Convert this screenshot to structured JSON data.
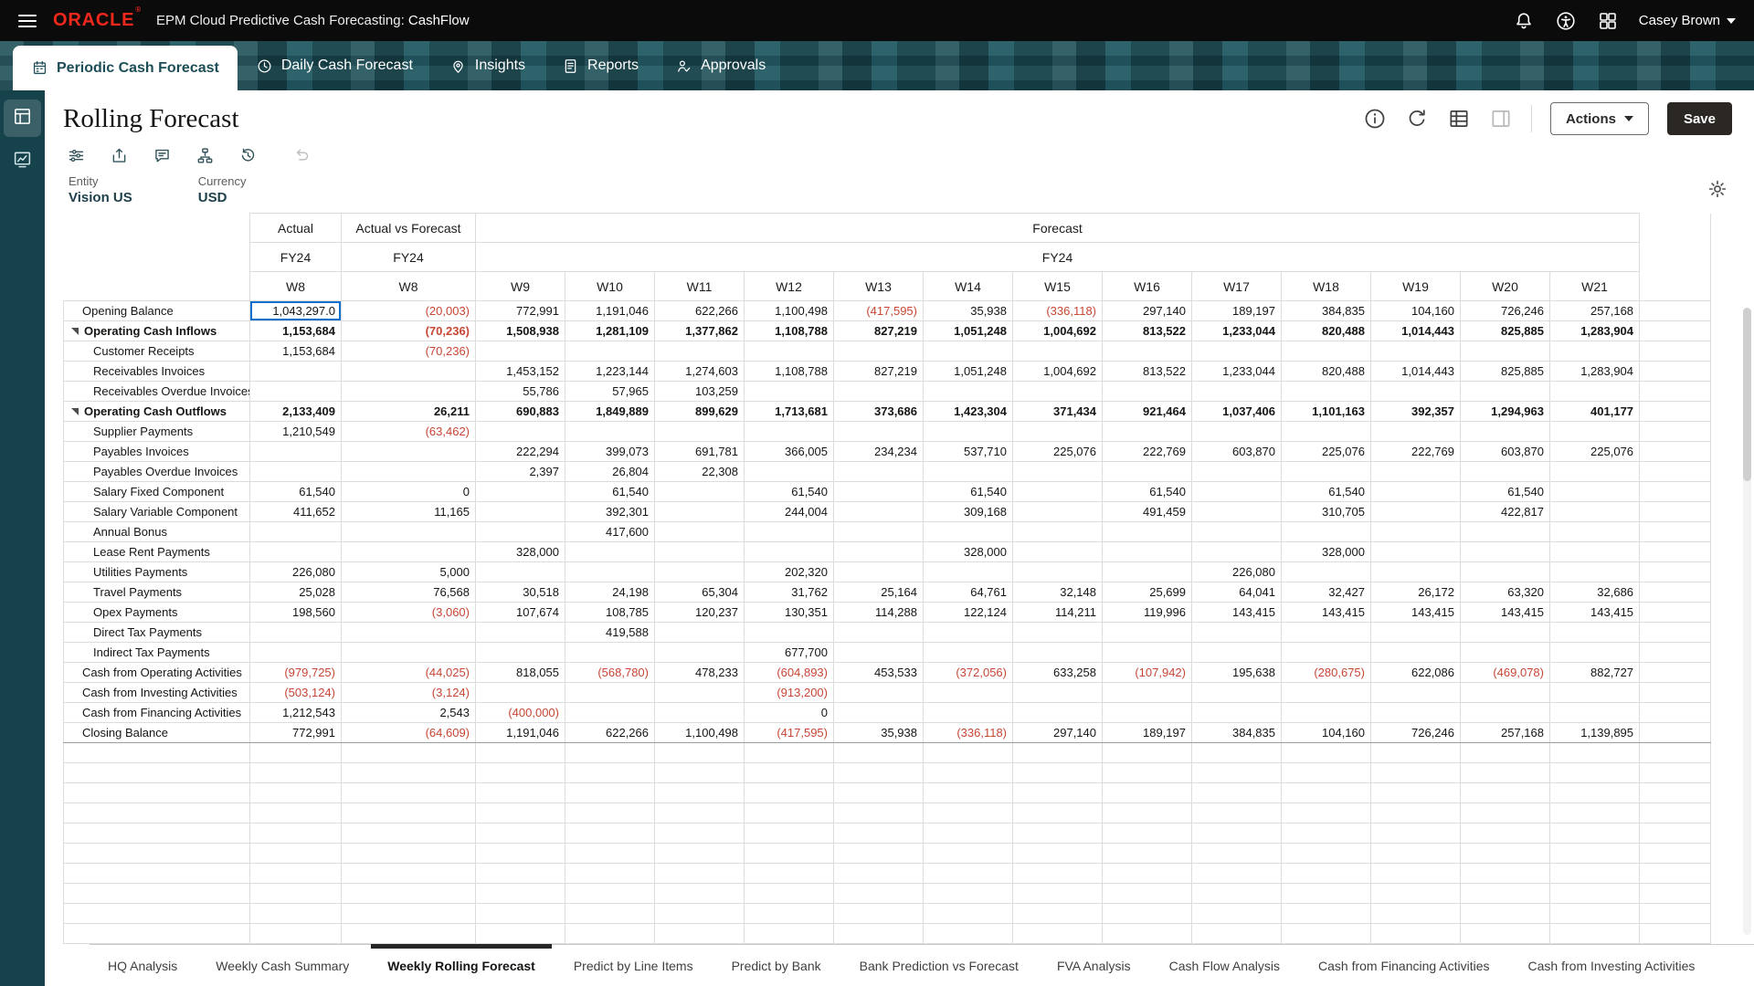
{
  "colors": {
    "oracle_red": "#f0281c",
    "band_teal": "#1d4e57",
    "sidebar_teal": "#16424c",
    "negative_red": "#c74634",
    "selected_cell_border": "#0b6fd0",
    "save_button_bg": "#2b2723"
  },
  "topbar": {
    "logo": "ORACLE",
    "logo_mark": "®",
    "title": "EPM Cloud Predictive Cash Forecasting:",
    "context": "CashFlow",
    "user": "Casey Brown"
  },
  "nav_tabs": [
    {
      "label": "Periodic Cash Forecast",
      "icon": "calendar",
      "active": true
    },
    {
      "label": "Daily Cash Forecast",
      "icon": "clock",
      "active": false
    },
    {
      "label": "Insights",
      "icon": "pin",
      "active": false
    },
    {
      "label": "Reports",
      "icon": "doc",
      "active": false
    },
    {
      "label": "Approvals",
      "icon": "approvals",
      "active": false
    }
  ],
  "page": {
    "title": "Rolling Forecast",
    "actions_label": "Actions",
    "save_label": "Save"
  },
  "pov": {
    "entity_label": "Entity",
    "entity_value": "Vision US",
    "currency_label": "Currency",
    "currency_value": "USD"
  },
  "grid": {
    "column_groups": [
      {
        "label": "Actual",
        "year": "FY24",
        "weeks": [
          "W8"
        ]
      },
      {
        "label": "Actual vs Forecast",
        "year": "FY24",
        "weeks": [
          "W8"
        ]
      },
      {
        "label": "Forecast",
        "year": "FY24",
        "weeks": [
          "W9",
          "W10",
          "W11",
          "W12",
          "W13",
          "W14",
          "W15",
          "W16",
          "W17",
          "W18",
          "W19",
          "W20",
          "W21"
        ]
      }
    ],
    "selected_cell": {
      "row": 0,
      "col": 0
    },
    "rows": [
      {
        "label": "Opening Balance",
        "indent": 1,
        "bold": false,
        "expandable": false,
        "values": [
          "1,043,297.0",
          "(20,003)",
          "772,991",
          "1,191,046",
          "622,266",
          "1,100,498",
          "(417,595)",
          "35,938",
          "(336,118)",
          "297,140",
          "189,197",
          "384,835",
          "104,160",
          "726,246",
          "257,168"
        ]
      },
      {
        "label": "Operating Cash Inflows",
        "indent": 0,
        "bold": true,
        "expandable": true,
        "values": [
          "1,153,684",
          "(70,236)",
          "1,508,938",
          "1,281,109",
          "1,377,862",
          "1,108,788",
          "827,219",
          "1,051,248",
          "1,004,692",
          "813,522",
          "1,233,044",
          "820,488",
          "1,014,443",
          "825,885",
          "1,283,904"
        ]
      },
      {
        "label": "Customer Receipts",
        "indent": 2,
        "bold": false,
        "expandable": false,
        "values": [
          "1,153,684",
          "(70,236)",
          "",
          "",
          "",
          "",
          "",
          "",
          "",
          "",
          "",
          "",
          "",
          "",
          ""
        ]
      },
      {
        "label": "Receivables Invoices",
        "indent": 2,
        "bold": false,
        "expandable": false,
        "values": [
          "",
          "",
          "1,453,152",
          "1,223,144",
          "1,274,603",
          "1,108,788",
          "827,219",
          "1,051,248",
          "1,004,692",
          "813,522",
          "1,233,044",
          "820,488",
          "1,014,443",
          "825,885",
          "1,283,904"
        ]
      },
      {
        "label": "Receivables Overdue Invoices",
        "indent": 2,
        "bold": false,
        "expandable": false,
        "values": [
          "",
          "",
          "55,786",
          "57,965",
          "103,259",
          "",
          "",
          "",
          "",
          "",
          "",
          "",
          "",
          "",
          ""
        ]
      },
      {
        "label": "Operating Cash Outflows",
        "indent": 0,
        "bold": true,
        "expandable": true,
        "values": [
          "2,133,409",
          "26,211",
          "690,883",
          "1,849,889",
          "899,629",
          "1,713,681",
          "373,686",
          "1,423,304",
          "371,434",
          "921,464",
          "1,037,406",
          "1,101,163",
          "392,357",
          "1,294,963",
          "401,177"
        ]
      },
      {
        "label": "Supplier Payments",
        "indent": 2,
        "bold": false,
        "expandable": false,
        "values": [
          "1,210,549",
          "(63,462)",
          "",
          "",
          "",
          "",
          "",
          "",
          "",
          "",
          "",
          "",
          "",
          "",
          ""
        ]
      },
      {
        "label": "Payables Invoices",
        "indent": 2,
        "bold": false,
        "expandable": false,
        "values": [
          "",
          "",
          "222,294",
          "399,073",
          "691,781",
          "366,005",
          "234,234",
          "537,710",
          "225,076",
          "222,769",
          "603,870",
          "225,076",
          "222,769",
          "603,870",
          "225,076"
        ]
      },
      {
        "label": "Payables Overdue Invoices",
        "indent": 2,
        "bold": false,
        "expandable": false,
        "values": [
          "",
          "",
          "2,397",
          "26,804",
          "22,308",
          "",
          "",
          "",
          "",
          "",
          "",
          "",
          "",
          "",
          ""
        ]
      },
      {
        "label": "Salary Fixed Component",
        "indent": 2,
        "bold": false,
        "expandable": false,
        "values": [
          "61,540",
          "0",
          "",
          "61,540",
          "",
          "61,540",
          "",
          "61,540",
          "",
          "61,540",
          "",
          "61,540",
          "",
          "61,540",
          ""
        ]
      },
      {
        "label": "Salary Variable Component",
        "indent": 2,
        "bold": false,
        "expandable": false,
        "values": [
          "411,652",
          "11,165",
          "",
          "392,301",
          "",
          "244,004",
          "",
          "309,168",
          "",
          "491,459",
          "",
          "310,705",
          "",
          "422,817",
          ""
        ]
      },
      {
        "label": "Annual Bonus",
        "indent": 2,
        "bold": false,
        "expandable": false,
        "values": [
          "",
          "",
          "",
          "417,600",
          "",
          "",
          "",
          "",
          "",
          "",
          "",
          "",
          "",
          "",
          ""
        ]
      },
      {
        "label": "Lease Rent Payments",
        "indent": 2,
        "bold": false,
        "expandable": false,
        "values": [
          "",
          "",
          "328,000",
          "",
          "",
          "",
          "",
          "328,000",
          "",
          "",
          "",
          "328,000",
          "",
          "",
          ""
        ]
      },
      {
        "label": "Utilities Payments",
        "indent": 2,
        "bold": false,
        "expandable": false,
        "values": [
          "226,080",
          "5,000",
          "",
          "",
          "",
          "202,320",
          "",
          "",
          "",
          "",
          "226,080",
          "",
          "",
          "",
          ""
        ]
      },
      {
        "label": "Travel Payments",
        "indent": 2,
        "bold": false,
        "expandable": false,
        "values": [
          "25,028",
          "76,568",
          "30,518",
          "24,198",
          "65,304",
          "31,762",
          "25,164",
          "64,761",
          "32,148",
          "25,699",
          "64,041",
          "32,427",
          "26,172",
          "63,320",
          "32,686"
        ]
      },
      {
        "label": "Opex Payments",
        "indent": 2,
        "bold": false,
        "expandable": false,
        "values": [
          "198,560",
          "(3,060)",
          "107,674",
          "108,785",
          "120,237",
          "130,351",
          "114,288",
          "122,124",
          "114,211",
          "119,996",
          "143,415",
          "143,415",
          "143,415",
          "143,415",
          "143,415"
        ]
      },
      {
        "label": "Direct Tax Payments",
        "indent": 2,
        "bold": false,
        "expandable": false,
        "values": [
          "",
          "",
          "",
          "419,588",
          "",
          "",
          "",
          "",
          "",
          "",
          "",
          "",
          "",
          "",
          ""
        ]
      },
      {
        "label": "Indirect Tax Payments",
        "indent": 2,
        "bold": false,
        "expandable": false,
        "values": [
          "",
          "",
          "",
          "",
          "",
          "677,700",
          "",
          "",
          "",
          "",
          "",
          "",
          "",
          "",
          ""
        ]
      },
      {
        "label": "Cash from Operating Activities",
        "indent": 1,
        "bold": false,
        "expandable": false,
        "values": [
          "(979,725)",
          "(44,025)",
          "818,055",
          "(568,780)",
          "478,233",
          "(604,893)",
          "453,533",
          "(372,056)",
          "633,258",
          "(107,942)",
          "195,638",
          "(280,675)",
          "622,086",
          "(469,078)",
          "882,727"
        ]
      },
      {
        "label": "Cash from Investing Activities",
        "indent": 1,
        "bold": false,
        "expandable": false,
        "values": [
          "(503,124)",
          "(3,124)",
          "",
          "",
          "",
          "(913,200)",
          "",
          "",
          "",
          "",
          "",
          "",
          "",
          "",
          ""
        ]
      },
      {
        "label": "Cash from Financing Activities",
        "indent": 1,
        "bold": false,
        "expandable": false,
        "values": [
          "1,212,543",
          "2,543",
          "(400,000)",
          "",
          "",
          "0",
          "",
          "",
          "",
          "",
          "",
          "",
          "",
          "",
          ""
        ]
      },
      {
        "label": "Closing Balance",
        "indent": 1,
        "bold": false,
        "expandable": false,
        "values": [
          "772,991",
          "(64,609)",
          "1,191,046",
          "622,266",
          "1,100,498",
          "(417,595)",
          "35,938",
          "(336,118)",
          "297,140",
          "189,197",
          "384,835",
          "104,160",
          "726,246",
          "257,168",
          "1,139,895"
        ]
      }
    ]
  },
  "bottom_tabs": [
    {
      "label": "HQ Analysis",
      "active": false
    },
    {
      "label": "Weekly Cash Summary",
      "active": false
    },
    {
      "label": "Weekly Rolling Forecast",
      "active": true
    },
    {
      "label": "Predict by Line Items",
      "active": false
    },
    {
      "label": "Predict by Bank",
      "active": false
    },
    {
      "label": "Bank Prediction vs Forecast",
      "active": false
    },
    {
      "label": "FVA Analysis",
      "active": false
    },
    {
      "label": "Cash Flow Analysis",
      "active": false
    },
    {
      "label": "Cash from Financing Activities",
      "active": false
    },
    {
      "label": "Cash from Investing Activities",
      "active": false
    }
  ]
}
